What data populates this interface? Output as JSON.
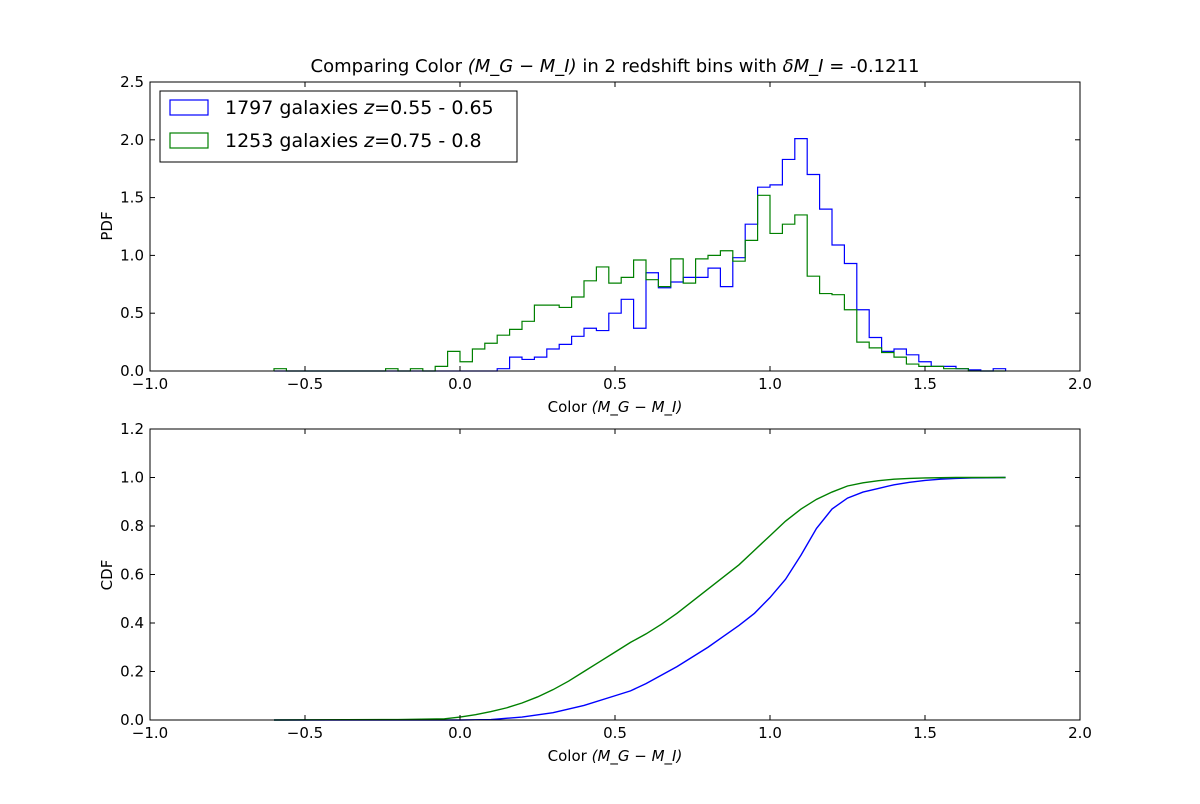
{
  "chart_data": [
    {
      "type": "histogram-step",
      "title": "Comparing Color (M_G − M_I) in 2 redshift bins with δM_I = -0.1211",
      "title_parts": {
        "pre": "Comparing Color ",
        "math": "(M_G − M_I)",
        "mid": " in 2 redshift bins with ",
        "math2": "δM_I",
        "post": " = -0.1211"
      },
      "xlabel": "Color (M_G − M_I)",
      "xlabel_parts": {
        "pre": "Color ",
        "math": "(M_G − M_I)"
      },
      "ylabel": "PDF",
      "xlim": [
        -1.0,
        2.0
      ],
      "ylim": [
        0.0,
        2.5
      ],
      "xticks": [
        "−1.0",
        "−0.5",
        "0.0",
        "0.5",
        "1.0",
        "1.5",
        "2.0"
      ],
      "xtick_values": [
        -1.0,
        -0.5,
        0.0,
        0.5,
        1.0,
        1.5,
        2.0
      ],
      "yticks": [
        "0.0",
        "0.5",
        "1.0",
        "1.5",
        "2.0",
        "2.5"
      ],
      "ytick_values": [
        0.0,
        0.5,
        1.0,
        1.5,
        2.0,
        2.5
      ],
      "legend": {
        "placement": "upper-left"
      },
      "bin_edges": [
        -0.6,
        -0.56,
        -0.52,
        -0.48,
        -0.44,
        -0.4,
        -0.36,
        -0.32,
        -0.28,
        -0.24,
        -0.2,
        -0.16,
        -0.12,
        -0.08,
        -0.04,
        0.0,
        0.04,
        0.08,
        0.12,
        0.16,
        0.2,
        0.24,
        0.28,
        0.32,
        0.36,
        0.4,
        0.44,
        0.48,
        0.52,
        0.56,
        0.6,
        0.64,
        0.68,
        0.72,
        0.76,
        0.8,
        0.84,
        0.88,
        0.92,
        0.96,
        1.0,
        1.04,
        1.08,
        1.12,
        1.16,
        1.2,
        1.24,
        1.28,
        1.32,
        1.36,
        1.4,
        1.44,
        1.48,
        1.52,
        1.56,
        1.6,
        1.64,
        1.68,
        1.72,
        1.76
      ],
      "series": [
        {
          "label_pre": "1797 galaxies ",
          "label_math": "z",
          "label_post": "=0.55 - 0.65",
          "color": "#0000ff",
          "values": [
            0.0,
            0.0,
            0.0,
            0.0,
            0.0,
            0.0,
            0.0,
            0.0,
            0.0,
            0.0,
            0.0,
            0.0,
            0.0,
            0.0,
            0.0,
            0.0,
            0.0,
            0.0,
            0.02,
            0.12,
            0.1,
            0.12,
            0.19,
            0.23,
            0.3,
            0.37,
            0.35,
            0.5,
            0.62,
            0.37,
            0.85,
            0.72,
            0.77,
            0.81,
            0.81,
            0.89,
            0.73,
            0.98,
            1.27,
            1.59,
            1.61,
            1.83,
            2.01,
            1.7,
            1.4,
            1.09,
            0.93,
            0.53,
            0.29,
            0.17,
            0.19,
            0.14,
            0.08,
            0.04,
            0.04,
            0.02,
            0.01,
            0.0,
            0.02
          ]
        },
        {
          "label_pre": "1253 galaxies ",
          "label_math": "z",
          "label_post": "=0.75 - 0.8",
          "color": "#008000",
          "values": [
            0.02,
            0.0,
            0.0,
            0.0,
            0.0,
            0.0,
            0.0,
            0.0,
            0.0,
            0.02,
            0.0,
            0.02,
            0.0,
            0.04,
            0.17,
            0.08,
            0.19,
            0.24,
            0.31,
            0.36,
            0.43,
            0.57,
            0.57,
            0.55,
            0.64,
            0.78,
            0.9,
            0.76,
            0.81,
            0.96,
            0.79,
            0.73,
            0.97,
            0.76,
            0.97,
            1.0,
            1.04,
            0.95,
            1.13,
            1.52,
            1.19,
            1.27,
            1.35,
            0.82,
            0.67,
            0.66,
            0.53,
            0.25,
            0.2,
            0.16,
            0.12,
            0.06,
            0.04,
            0.04,
            0.02,
            0.02,
            0.0,
            0.0,
            0.0
          ]
        }
      ]
    },
    {
      "type": "line",
      "xlabel": "Color (M_G − M_I)",
      "xlabel_parts": {
        "pre": "Color ",
        "math": "(M_G − M_I)"
      },
      "ylabel": "CDF",
      "xlim": [
        -1.0,
        2.0
      ],
      "ylim": [
        0.0,
        1.2
      ],
      "xticks": [
        "−1.0",
        "−0.5",
        "0.0",
        "0.5",
        "1.0",
        "1.5",
        "2.0"
      ],
      "xtick_values": [
        -1.0,
        -0.5,
        0.0,
        0.5,
        1.0,
        1.5,
        2.0
      ],
      "yticks": [
        "0.0",
        "0.2",
        "0.4",
        "0.6",
        "0.8",
        "1.0",
        "1.2"
      ],
      "ytick_values": [
        0.0,
        0.2,
        0.4,
        0.6,
        0.8,
        1.0,
        1.2
      ],
      "series": [
        {
          "color": "#0000ff",
          "x": [
            -0.6,
            -0.2,
            0.0,
            0.1,
            0.2,
            0.3,
            0.4,
            0.5,
            0.55,
            0.6,
            0.7,
            0.8,
            0.85,
            0.9,
            0.95,
            1.0,
            1.05,
            1.1,
            1.15,
            1.2,
            1.25,
            1.3,
            1.35,
            1.4,
            1.45,
            1.5,
            1.55,
            1.6,
            1.65,
            1.7,
            1.76
          ],
          "y": [
            0.0,
            0.0,
            0.0,
            0.002,
            0.012,
            0.03,
            0.06,
            0.1,
            0.12,
            0.15,
            0.22,
            0.3,
            0.345,
            0.39,
            0.44,
            0.505,
            0.58,
            0.68,
            0.79,
            0.87,
            0.915,
            0.94,
            0.955,
            0.97,
            0.98,
            0.988,
            0.993,
            0.996,
            0.998,
            0.999,
            1.0
          ]
        },
        {
          "color": "#008000",
          "x": [
            -0.6,
            -0.2,
            -0.05,
            0.0,
            0.05,
            0.1,
            0.15,
            0.2,
            0.25,
            0.3,
            0.35,
            0.4,
            0.45,
            0.5,
            0.55,
            0.6,
            0.65,
            0.7,
            0.75,
            0.8,
            0.85,
            0.9,
            0.95,
            1.0,
            1.05,
            1.1,
            1.15,
            1.2,
            1.25,
            1.3,
            1.35,
            1.4,
            1.45,
            1.5,
            1.55,
            1.6,
            1.76
          ],
          "y": [
            0.0,
            0.002,
            0.005,
            0.012,
            0.022,
            0.035,
            0.05,
            0.07,
            0.095,
            0.125,
            0.16,
            0.2,
            0.24,
            0.28,
            0.32,
            0.355,
            0.395,
            0.44,
            0.49,
            0.54,
            0.59,
            0.64,
            0.7,
            0.76,
            0.82,
            0.87,
            0.91,
            0.94,
            0.965,
            0.978,
            0.987,
            0.993,
            0.996,
            0.998,
            0.999,
            1.0,
            1.0
          ]
        }
      ]
    }
  ]
}
